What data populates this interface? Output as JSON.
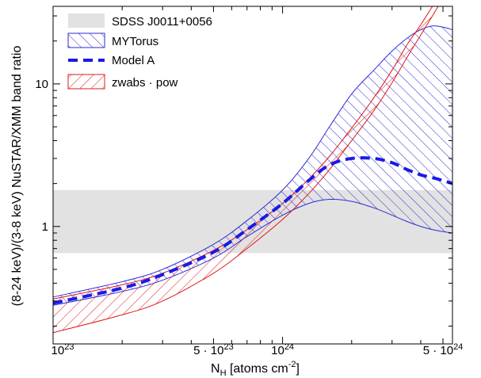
{
  "chart_data": {
    "type": "area",
    "xlabel_main": "N",
    "xlabel_sub": "H",
    "xlabel_rest": " [atoms cm",
    "xlabel_sup": "-2",
    "xlabel_end": "]",
    "ylabel": "(8-24 keV)/(3-8 keV) NuSTAR/XMM band ratio",
    "x_scale": "log",
    "y_scale": "log",
    "xlim": [
      1e+23,
      5.5e+24
    ],
    "ylim": [
      0.15,
      35
    ],
    "grid": false,
    "legend_position": "top-left",
    "x_ticks": [
      {
        "value": 1e+23,
        "base": "10",
        "exp": "23",
        "prefix": ""
      },
      {
        "value": 5e+23,
        "base": "10",
        "exp": "23",
        "prefix": "5 · "
      },
      {
        "value": 1e+24,
        "base": "10",
        "exp": "24",
        "prefix": ""
      },
      {
        "value": 5e+24,
        "base": "10",
        "exp": "24",
        "prefix": "5 · "
      }
    ],
    "y_ticks": [
      {
        "value": 1,
        "label": "1"
      },
      {
        "value": 10,
        "label": "10"
      }
    ],
    "colors": {
      "sdss": "#e2e2e2",
      "mytorus": "#2b2bd6",
      "model_a": "#1a1ae6",
      "zwabs": "#e01818"
    },
    "legend": [
      {
        "key": "sdss",
        "label": "SDSS J0011+0056"
      },
      {
        "key": "mytorus",
        "label": "MYTorus"
      },
      {
        "key": "model_a",
        "label": "Model A"
      },
      {
        "key": "zwabs",
        "label": "zwabs · pow"
      }
    ],
    "sdss_band": {
      "y_low": 0.65,
      "y_high": 1.8
    },
    "mytorus": {
      "x": [
        1e+23,
        2e+23,
        3e+23,
        5e+23,
        7e+23,
        1e+24,
        1.3e+24,
        1.6e+24,
        2e+24,
        2.5e+24,
        3e+24,
        3.5e+24,
        4e+24,
        4.5e+24,
        5e+24,
        5.5e+24
      ],
      "upper": [
        0.32,
        0.41,
        0.5,
        0.75,
        1.1,
        1.8,
        3.0,
        5.0,
        8.5,
        12.5,
        17,
        21,
        24,
        25.5,
        25,
        24
      ],
      "lower": [
        0.28,
        0.35,
        0.42,
        0.6,
        0.85,
        1.2,
        1.45,
        1.55,
        1.5,
        1.35,
        1.2,
        1.08,
        1.0,
        0.95,
        0.92,
        0.9
      ]
    },
    "model_a": {
      "x": [
        1e+23,
        2e+23,
        3e+23,
        5e+23,
        7e+23,
        1e+24,
        1.3e+24,
        1.6e+24,
        2e+24,
        2.5e+24,
        3e+24,
        3.5e+24,
        4e+24,
        4.5e+24,
        5e+24,
        5.5e+24
      ],
      "y": [
        0.29,
        0.37,
        0.46,
        0.66,
        0.95,
        1.45,
        2.1,
        2.7,
        3.0,
        3.0,
        2.8,
        2.5,
        2.3,
        2.2,
        2.1,
        2.0
      ]
    },
    "zwabs": {
      "x": [
        1e+23,
        2e+23,
        3e+23,
        5e+23,
        7e+23,
        1e+24,
        1.3e+24,
        1.6e+24,
        2e+24,
        2.5e+24,
        3e+24,
        3.5e+24,
        4e+24,
        4.5e+24,
        5e+24
      ],
      "upper": [
        0.31,
        0.39,
        0.47,
        0.68,
        0.95,
        1.45,
        2.15,
        3.1,
        4.9,
        8.0,
        12.5,
        19,
        26,
        35,
        45
      ],
      "lower": [
        0.18,
        0.24,
        0.3,
        0.47,
        0.7,
        1.12,
        1.7,
        2.5,
        4.0,
        6.5,
        10.2,
        15.5,
        22,
        30,
        40
      ]
    }
  }
}
